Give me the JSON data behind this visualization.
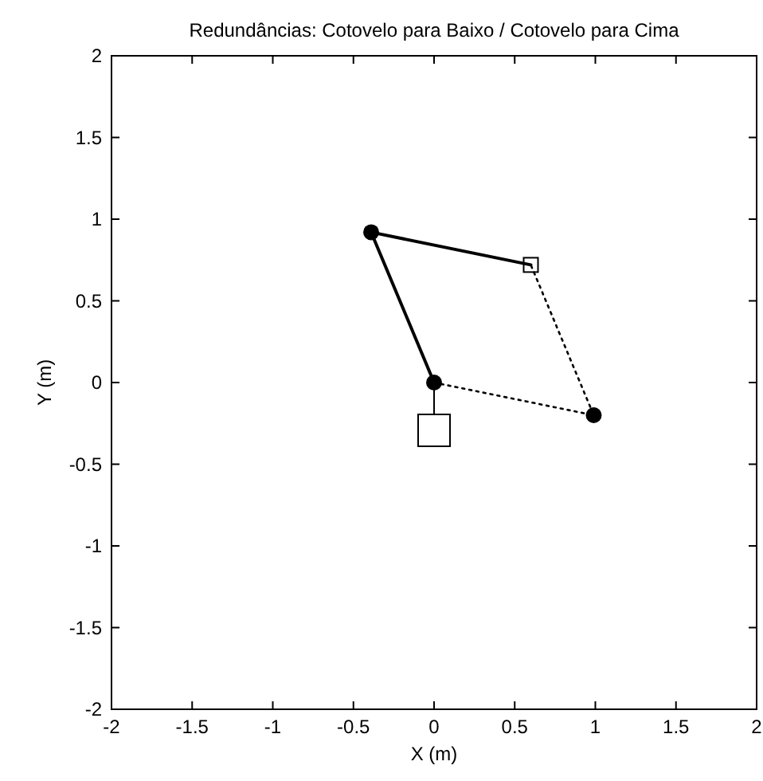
{
  "chart_data": {
    "type": "line",
    "title": "Redundâncias: Cotovelo para Baixo / Cotovelo para Cima",
    "xlabel": "X (m)",
    "ylabel": "Y (m)",
    "xlim": [
      -2,
      2
    ],
    "ylim": [
      -2,
      2
    ],
    "xticks": [
      -2,
      -1.5,
      -1,
      -0.5,
      0,
      0.5,
      1,
      1.5,
      2
    ],
    "yticks": [
      -2,
      -1.5,
      -1,
      -0.5,
      0,
      0.5,
      1,
      1.5,
      2
    ],
    "grid": false,
    "series": [
      {
        "color": "#000000",
        "line_style": "solid",
        "marker": "none",
        "x": [
          0,
          -0.39,
          0.6
        ],
        "values": [
          0,
          0.92,
          0.72
        ]
      },
      {
        "color": "#000000",
        "line_style": "dotted",
        "marker": "none",
        "x": [
          0,
          0.99,
          0.6
        ],
        "values": [
          0,
          -0.2,
          0.72
        ]
      },
      {
        "type": "scatter",
        "color": "#000000",
        "marker": "circle",
        "x": [
          0,
          -0.39,
          0.99
        ],
        "values": [
          0,
          0.92,
          -0.2
        ]
      },
      {
        "type": "scatter",
        "color": "#000000",
        "marker": "square",
        "x": [
          0.6
        ],
        "values": [
          0.72
        ]
      }
    ]
  }
}
